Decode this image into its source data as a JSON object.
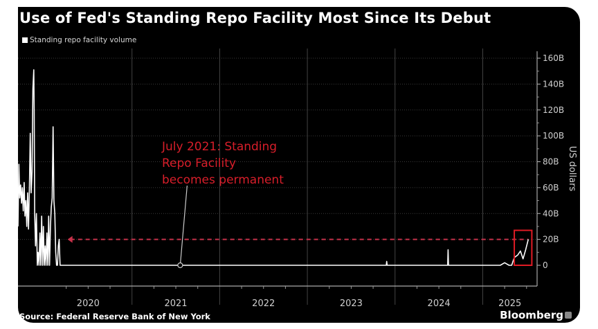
{
  "chart_data": {
    "type": "line",
    "title": "Use of Fed's Standing Repo Facility Most Since Its Debut",
    "legend": [
      "Standing repo facility volume"
    ],
    "legend_placement": "top-left",
    "ylabel": "US dollars",
    "xlabel": "",
    "ylim": [
      0,
      160
    ],
    "y_unit": "billions USD",
    "y_ticks": [
      "0",
      "20B",
      "40B",
      "60B",
      "80B",
      "100B",
      "120B",
      "140B",
      "160B"
    ],
    "y_tick_values": [
      0,
      20,
      40,
      60,
      80,
      100,
      120,
      140,
      160
    ],
    "x_ticks": [
      "2020",
      "2021",
      "2022",
      "2023",
      "2024",
      "2025"
    ],
    "xlim": [
      2019.7,
      2025.62
    ],
    "grid": true,
    "series": [
      {
        "name": "Standing repo facility volume",
        "color": "#ffffff",
        "x": [
          2019.7,
          2019.71,
          2019.72,
          2019.73,
          2019.74,
          2019.75,
          2019.76,
          2019.77,
          2019.78,
          2019.79,
          2019.8,
          2019.81,
          2019.82,
          2019.83,
          2019.84,
          2019.85,
          2019.86,
          2019.87,
          2019.88,
          2019.885,
          2019.89,
          2019.9,
          2019.91,
          2019.92,
          2019.93,
          2019.94,
          2019.95,
          2019.96,
          2019.97,
          2019.98,
          2019.99,
          2020.0,
          2020.01,
          2020.02,
          2020.03,
          2020.04,
          2020.05,
          2020.06,
          2020.07,
          2020.08,
          2020.09,
          2020.1,
          2020.11,
          2020.12,
          2020.13,
          2020.14,
          2020.15,
          2020.16,
          2020.17,
          2020.18,
          2020.2,
          2020.21,
          2020.22,
          2020.23,
          2020.25,
          2020.26,
          2021.55,
          2023.9,
          2023.905,
          2023.91,
          2024.6,
          2024.605,
          2024.61,
          2025.2,
          2025.25,
          2025.3,
          2025.33,
          2025.36,
          2025.4,
          2025.43,
          2025.46,
          2025.49,
          2025.52
        ],
        "values": [
          30,
          78,
          52,
          62,
          48,
          60,
          42,
          64,
          38,
          50,
          30,
          56,
          28,
          60,
          102,
          56,
          72,
          136,
          151,
          120,
          40,
          15,
          40,
          0,
          10,
          0,
          25,
          0,
          38,
          0,
          30,
          0,
          15,
          0,
          25,
          0,
          38,
          0,
          30,
          45,
          52,
          107,
          50,
          40,
          10,
          0,
          0,
          15,
          20,
          0,
          0,
          0,
          0,
          0,
          0,
          0,
          0,
          0,
          3,
          0,
          0,
          12,
          0,
          0,
          2,
          0,
          0,
          6,
          8,
          11,
          5,
          12,
          20
        ]
      }
    ],
    "annotations": [
      {
        "text_lines": [
          "July 2021: Standing",
          "Repo Facility",
          "becomes permanent"
        ],
        "color": "#d81e2a",
        "points_to_x": 2021.55,
        "points_to_y": 0
      },
      {
        "type": "dashed-reference-line",
        "y": 20,
        "from_x": 2020.25,
        "to_x": 2025.52,
        "color": "#c8324a"
      },
      {
        "type": "highlight-box",
        "x_range": [
          2025.36,
          2025.56
        ],
        "y_range": [
          0,
          27
        ],
        "color": "#e01b24"
      }
    ]
  },
  "footer": {
    "source": "Source: Federal Reserve Bank of New York",
    "brand": "Bloomberg"
  }
}
